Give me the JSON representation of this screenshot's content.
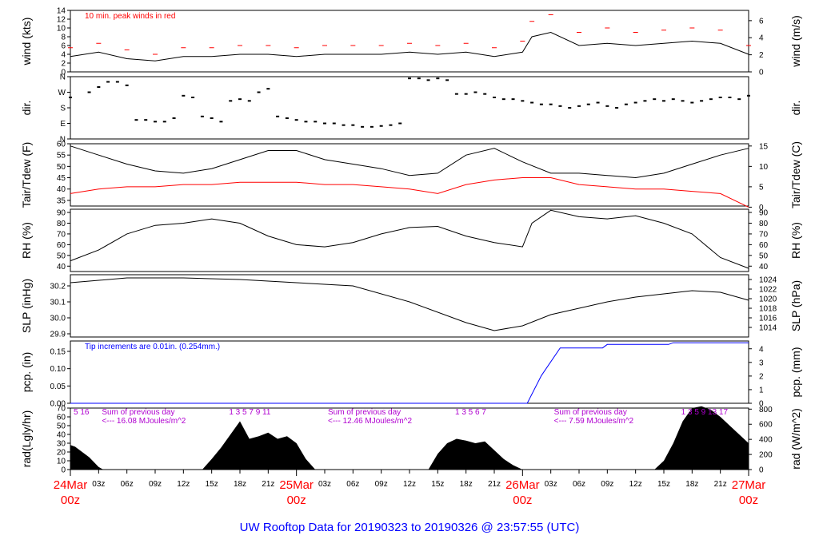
{
  "title": "UW Rooftop Data for 20190323  to  20190326 @ 23:57:55  (UTC)",
  "colors": {
    "red": "#ff0000",
    "blue": "#0000ff",
    "purple": "#b000d0",
    "black": "#000000"
  },
  "x_axis": {
    "hours": [
      "03z",
      "06z",
      "09z",
      "12z",
      "15z",
      "18z",
      "21z",
      "03z",
      "06z",
      "09z",
      "12z",
      "15z",
      "18z",
      "21z",
      "03z",
      "06z",
      "09z",
      "12z",
      "15z",
      "18z",
      "21z"
    ],
    "hour_values": [
      3,
      6,
      9,
      12,
      15,
      18,
      21,
      27,
      30,
      33,
      36,
      39,
      42,
      45,
      51,
      54,
      57,
      60,
      63,
      66,
      69
    ],
    "days": [
      {
        "date": "24Mar",
        "hour": "00z",
        "x": 0
      },
      {
        "date": "25Mar",
        "hour": "00z",
        "x": 24
      },
      {
        "date": "26Mar",
        "hour": "00z",
        "x": 48
      },
      {
        "date": "27Mar",
        "hour": "00z",
        "x": 72
      }
    ],
    "range_hours": [
      0,
      72
    ]
  },
  "chart_data": [
    {
      "type": "line",
      "ylabel": "wind (kts)",
      "ylabel_right": "wind (m/s)",
      "ylim": [
        0,
        14
      ],
      "yticks": [
        0,
        2,
        4,
        6,
        8,
        10,
        12,
        14
      ],
      "right_ticks": {
        "labels": [
          "0",
          "2",
          "4",
          "6"
        ],
        "values": [
          0,
          3.89,
          7.78,
          11.66
        ]
      },
      "annotation": "10 min. peak winds in red",
      "series": [
        {
          "role": "mean",
          "color": "#000000",
          "x": [
            0,
            3,
            6,
            9,
            12,
            15,
            18,
            21,
            24,
            27,
            30,
            33,
            36,
            39,
            42,
            45,
            48,
            49,
            51,
            54,
            57,
            60,
            63,
            66,
            69,
            72
          ],
          "values": [
            3.5,
            4.5,
            3.0,
            2.5,
            3.5,
            3.5,
            4.0,
            4.0,
            3.5,
            4.0,
            4.0,
            4.0,
            4.5,
            4.0,
            4.5,
            3.5,
            4.5,
            8,
            9,
            6,
            6.5,
            6,
            6.5,
            7,
            6.5,
            4
          ]
        },
        {
          "role": "peak",
          "color": "#ff0000",
          "x": [
            0,
            3,
            6,
            9,
            12,
            15,
            18,
            21,
            24,
            27,
            30,
            33,
            36,
            39,
            42,
            45,
            48,
            49,
            51,
            54,
            57,
            60,
            63,
            66,
            69,
            72
          ],
          "values": [
            5.5,
            6.5,
            5,
            4,
            5.5,
            5.5,
            6,
            6,
            5.5,
            6,
            6,
            6,
            6.5,
            6,
            6.5,
            5.5,
            7,
            11.5,
            13,
            9,
            10,
            9,
            9.5,
            10,
            9.5,
            6
          ]
        }
      ]
    },
    {
      "type": "scatter",
      "ylabel": "dir.",
      "ylabel_right": "dir.",
      "ylim": [
        0,
        360
      ],
      "yticks": [
        0,
        90,
        180,
        270,
        360
      ],
      "ytick_labels": [
        "N",
        "E",
        "S",
        "W",
        "N"
      ],
      "series": [
        {
          "color": "#000000",
          "x": [
            0,
            2,
            3,
            4,
            5,
            6,
            7,
            8,
            9,
            10,
            11,
            12,
            13,
            14,
            15,
            16,
            17,
            18,
            19,
            20,
            21,
            22,
            23,
            24,
            25,
            26,
            27,
            28,
            29,
            30,
            31,
            32,
            33,
            34,
            35,
            36,
            37,
            38,
            39,
            40,
            41,
            42,
            43,
            44,
            45,
            46,
            47,
            48,
            49,
            50,
            51,
            52,
            53,
            54,
            55,
            56,
            57,
            58,
            59,
            60,
            61,
            62,
            63,
            64,
            65,
            66,
            67,
            68,
            69,
            70,
            71,
            72
          ],
          "values": [
            240,
            270,
            300,
            330,
            330,
            310,
            110,
            110,
            100,
            100,
            120,
            250,
            240,
            130,
            120,
            100,
            220,
            230,
            220,
            270,
            290,
            130,
            120,
            110,
            100,
            100,
            90,
            90,
            80,
            80,
            70,
            70,
            75,
            80,
            90,
            350,
            350,
            340,
            350,
            340,
            260,
            260,
            270,
            260,
            240,
            230,
            230,
            220,
            210,
            200,
            200,
            190,
            180,
            190,
            200,
            210,
            190,
            180,
            200,
            210,
            220,
            230,
            220,
            230,
            220,
            210,
            220,
            230,
            240,
            240,
            230,
            250
          ]
        }
      ]
    },
    {
      "type": "line",
      "ylabel": "Tair/Tdew (F)",
      "ylabel_right": "Tair/Tdew (C)",
      "ylim": [
        32.5,
        60
      ],
      "yticks": [
        35,
        40,
        45,
        50,
        55,
        60
      ],
      "right_ticks": {
        "labels": [
          "0",
          "5",
          "10",
          "15"
        ],
        "values": [
          32,
          41,
          50,
          59
        ]
      },
      "series": [
        {
          "role": "air",
          "color": "#000000",
          "x": [
            0,
            3,
            6,
            9,
            12,
            15,
            18,
            21,
            24,
            27,
            30,
            33,
            36,
            39,
            42,
            45,
            48,
            51,
            54,
            57,
            60,
            63,
            66,
            69,
            72
          ],
          "values": [
            59,
            55,
            51,
            48,
            47,
            49,
            53,
            57,
            57,
            53,
            51,
            49,
            46,
            47,
            55,
            58,
            52,
            47,
            47,
            46,
            45,
            47,
            51,
            55,
            58
          ]
        },
        {
          "role": "dew",
          "color": "#ff0000",
          "x": [
            0,
            3,
            6,
            9,
            12,
            15,
            18,
            21,
            24,
            27,
            30,
            33,
            36,
            39,
            42,
            45,
            48,
            51,
            54,
            57,
            60,
            63,
            66,
            69,
            72
          ],
          "values": [
            38,
            40,
            41,
            41,
            42,
            42,
            43,
            43,
            43,
            42,
            42,
            41,
            40,
            38,
            42,
            44,
            45,
            45,
            42,
            41,
            40,
            40,
            39,
            38,
            32
          ]
        }
      ]
    },
    {
      "type": "line",
      "ylabel": "RH (%)",
      "ylabel_right": "RH (%)",
      "ylim": [
        35,
        93
      ],
      "yticks": [
        40,
        50,
        60,
        70,
        80,
        90
      ],
      "right_ticks": {
        "labels": [
          "40",
          "50",
          "60",
          "70",
          "80",
          "90"
        ],
        "values": [
          40,
          50,
          60,
          70,
          80,
          90
        ]
      },
      "series": [
        {
          "color": "#000000",
          "x": [
            0,
            3,
            6,
            9,
            12,
            15,
            18,
            21,
            24,
            27,
            30,
            33,
            36,
            39,
            42,
            45,
            48,
            49,
            51,
            54,
            57,
            60,
            63,
            66,
            69,
            72
          ],
          "values": [
            45,
            55,
            70,
            78,
            80,
            84,
            80,
            68,
            60,
            58,
            62,
            70,
            76,
            77,
            68,
            62,
            58,
            80,
            92,
            86,
            84,
            87,
            80,
            70,
            48,
            38
          ]
        }
      ]
    },
    {
      "type": "line",
      "ylabel": "SLP (inHg)",
      "ylabel_right": "SLP (hPa)",
      "ylim": [
        29.88,
        30.27
      ],
      "yticks": [
        29.9,
        30.0,
        30.1,
        30.2
      ],
      "ytick_labels": [
        "29.9",
        "30.0",
        "30.1",
        "30.2"
      ],
      "right_ticks": {
        "labels": [
          "1014",
          "1016",
          "1018",
          "1020",
          "1022",
          "1024"
        ],
        "values": [
          29.94,
          30.0,
          30.06,
          30.12,
          30.18,
          30.24
        ]
      },
      "series": [
        {
          "color": "#000000",
          "x": [
            0,
            6,
            12,
            18,
            24,
            30,
            36,
            42,
            45,
            48,
            51,
            54,
            57,
            60,
            63,
            66,
            69,
            72
          ],
          "values": [
            30.22,
            30.25,
            30.25,
            30.24,
            30.22,
            30.2,
            30.1,
            29.97,
            29.92,
            29.95,
            30.02,
            30.06,
            30.1,
            30.13,
            30.15,
            30.17,
            30.16,
            30.11
          ]
        }
      ]
    },
    {
      "type": "line",
      "ylabel": "pcp. (in)",
      "ylabel_right": "pcp. (mm)",
      "ylim": [
        0,
        0.18
      ],
      "yticks": [
        0.0,
        0.05,
        0.1,
        0.15
      ],
      "ytick_labels": [
        "0.00",
        "0.05",
        "0.10",
        "0.15"
      ],
      "right_ticks": {
        "labels": [
          "0",
          "1",
          "2",
          "3",
          "4"
        ],
        "values": [
          0,
          0.0394,
          0.0787,
          0.1181,
          0.1575
        ]
      },
      "annotation": "Tip increments are 0.01in. (0.254mm.)",
      "series": [
        {
          "color": "#0000ff",
          "x": [
            0,
            48.5,
            50,
            52,
            52.5,
            56.5,
            57,
            63.5,
            64,
            72
          ],
          "values": [
            0,
            0,
            0.08,
            0.16,
            0.16,
            0.16,
            0.17,
            0.17,
            0.175,
            0.175
          ]
        }
      ]
    },
    {
      "type": "area",
      "ylabel": "rad(Lgly/hr)",
      "ylabel_right": "rad (W/m^2)",
      "ylim": [
        0,
        70
      ],
      "yticks": [
        0,
        10,
        20,
        30,
        40,
        50,
        60,
        70
      ],
      "right_ticks": {
        "labels": [
          "0",
          "200",
          "400",
          "600",
          "800"
        ],
        "values": [
          0,
          17.2,
          34.4,
          51.6,
          68.8
        ]
      },
      "daily_notes": [
        {
          "hours": "5   16",
          "x": 0
        },
        {
          "hours": "Sum of previous day",
          "x": 3
        },
        {
          "hours": "<--- 16.08 MJoules/m^2",
          "x": 3
        },
        {
          "hours": "1  3   5   7   9  11",
          "x": 16.5
        },
        {
          "hours": "Sum of previous day",
          "x": 27
        },
        {
          "hours": "<--- 12.46 MJoules/m^2",
          "x": 27
        },
        {
          "hours": "1  3   5   6  7",
          "x": 40.5
        },
        {
          "hours": "Sum of previous day",
          "x": 51
        },
        {
          "hours": "<--- 7.59 MJoules/m^2",
          "x": 51
        },
        {
          "hours": "1  3  5  9  13  17",
          "x": 64.5
        }
      ],
      "series": [
        {
          "color": "#000000",
          "x": [
            0,
            0.5,
            2,
            3,
            3.5,
            14,
            15,
            16,
            17,
            18,
            19,
            20,
            21,
            22,
            23,
            24,
            25,
            26,
            38,
            39,
            40,
            41,
            42,
            43,
            44,
            45,
            46,
            47,
            48,
            49,
            50,
            62,
            63,
            64,
            65,
            66,
            67,
            68,
            69,
            70,
            71,
            72
          ],
          "values": [
            28,
            26,
            14,
            3,
            0,
            0,
            12,
            25,
            40,
            55,
            35,
            38,
            42,
            35,
            38,
            30,
            12,
            0,
            0,
            18,
            30,
            35,
            33,
            30,
            32,
            22,
            12,
            5,
            0,
            0,
            0,
            0,
            10,
            30,
            55,
            70,
            72,
            68,
            60,
            50,
            40,
            30
          ]
        }
      ]
    }
  ]
}
